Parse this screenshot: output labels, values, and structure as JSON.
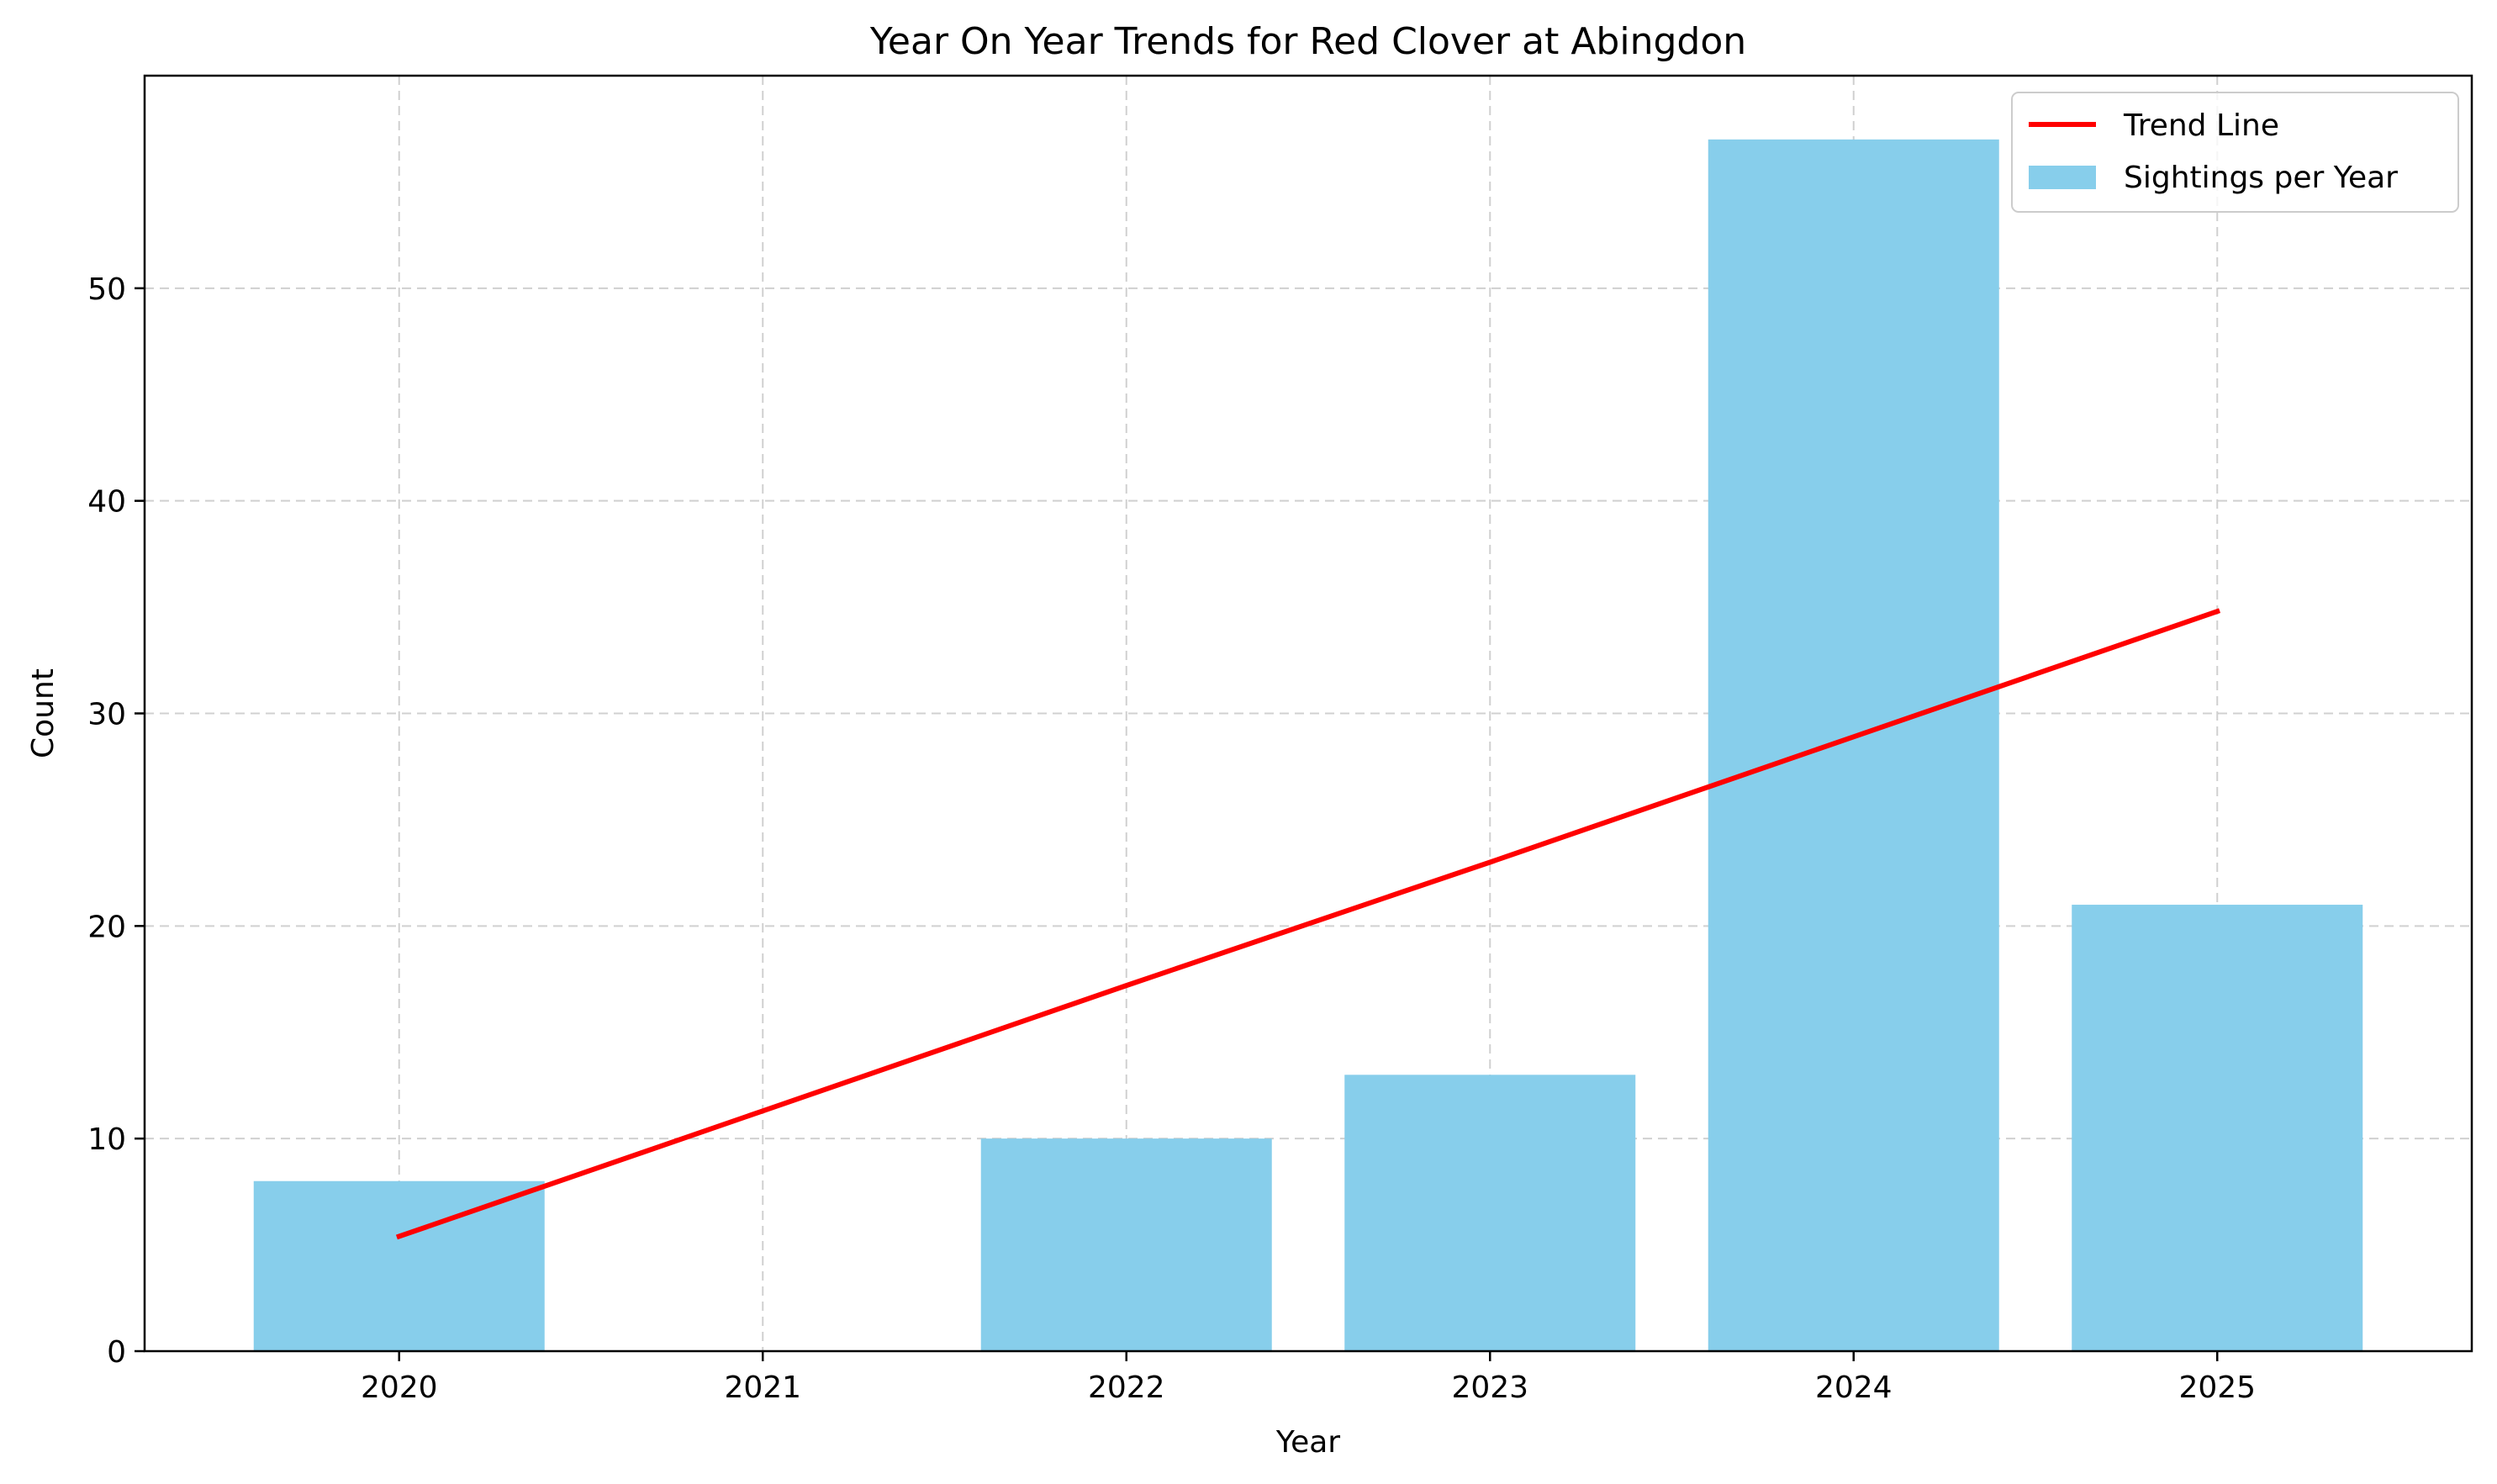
{
  "chart_data": {
    "type": "bar",
    "title": "Year On Year Trends for Red Clover at Abingdon",
    "xlabel": "Year",
    "ylabel": "Count",
    "categories": [
      "2020",
      "2021",
      "2022",
      "2023",
      "2024",
      "2025"
    ],
    "series": [
      {
        "name": "Sightings per Year",
        "type": "bar",
        "values": [
          8,
          0,
          10,
          13,
          57,
          21
        ],
        "color": "#87ceeb"
      },
      {
        "name": "Trend Line",
        "type": "line",
        "values": [
          5.4,
          11.3,
          17.2,
          23.0,
          28.9,
          34.8
        ],
        "color": "#ff0000"
      }
    ],
    "ylim": [
      0,
      60
    ],
    "yticks": [
      0,
      10,
      20,
      30,
      40,
      50
    ],
    "grid": true,
    "legend_position": "top-right"
  }
}
